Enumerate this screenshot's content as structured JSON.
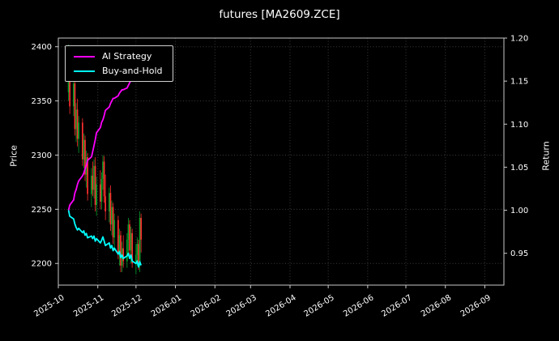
{
  "title": "futures [MA2609.ZCE]",
  "colors": {
    "background": "#000000",
    "text": "#ffffff",
    "grid": "#3b3b3b",
    "axis": "#c9c9c9",
    "up_candle": "#00a028",
    "down_candle": "#ff2e2e"
  },
  "chart_data": {
    "type": "candlestick+line",
    "title": "futures [MA2609.ZCE]",
    "x_axis": {
      "tick_labels": [
        "2025-10",
        "2025-11",
        "2025-12",
        "2026-01",
        "2026-02",
        "2026-03",
        "2026-04",
        "2026-05",
        "2026-06",
        "2026-07",
        "2026-08",
        "2026-09"
      ],
      "start_date": "2025-10-01",
      "end_date": "2026-09-16"
    },
    "left_axis": {
      "label": "Price",
      "ticks": [
        2200,
        2250,
        2300,
        2350,
        2400
      ],
      "range": [
        2180,
        2408
      ]
    },
    "right_axis": {
      "label": "Return",
      "ticks": [
        0.95,
        1.0,
        1.05,
        1.1,
        1.15,
        1.2
      ],
      "range": [
        0.913,
        1.2
      ]
    },
    "legend": [
      {
        "label": "AI Strategy",
        "color": "#ff00ff"
      },
      {
        "label": "Buy-and-Hold",
        "color": "#00ffff"
      }
    ],
    "candles": {
      "dates": [
        "2025-10-09",
        "2025-10-10",
        "2025-10-13",
        "2025-10-14",
        "2025-10-15",
        "2025-10-16",
        "2025-10-17",
        "2025-10-20",
        "2025-10-21",
        "2025-10-22",
        "2025-10-23",
        "2025-10-24",
        "2025-10-27",
        "2025-10-28",
        "2025-10-29",
        "2025-10-30",
        "2025-10-31",
        "2025-11-03",
        "2025-11-04",
        "2025-11-05",
        "2025-11-06",
        "2025-11-07",
        "2025-11-10",
        "2025-11-11",
        "2025-11-12",
        "2025-11-13",
        "2025-11-14",
        "2025-11-17",
        "2025-11-18",
        "2025-11-19",
        "2025-11-20",
        "2025-11-21",
        "2025-11-24",
        "2025-11-25",
        "2025-11-26",
        "2025-11-27",
        "2025-11-28",
        "2025-12-01",
        "2025-12-02",
        "2025-12-03",
        "2025-12-04",
        "2025-12-05"
      ],
      "open": [
        2358,
        2396,
        2345,
        2366,
        2324,
        2342,
        2315,
        2330,
        2296,
        2314,
        2282,
        2298,
        2264,
        2281,
        2268,
        2290,
        2254,
        2273,
        2257,
        2278,
        2294,
        2262,
        2248,
        2265,
        2236,
        2252,
        2224,
        2240,
        2210,
        2226,
        2198,
        2214,
        2202,
        2222,
        2236,
        2212,
        2228,
        2200,
        2208,
        2218,
        2198,
        2242
      ],
      "high": [
        2402,
        2399,
        2372,
        2370,
        2348,
        2352,
        2336,
        2334,
        2320,
        2318,
        2304,
        2302,
        2288,
        2294,
        2296,
        2298,
        2280,
        2286,
        2284,
        2300,
        2299,
        2282,
        2270,
        2272,
        2258,
        2256,
        2246,
        2244,
        2232,
        2230,
        2220,
        2226,
        2228,
        2242,
        2240,
        2234,
        2232,
        2218,
        2224,
        2222,
        2248,
        2246
      ],
      "low": [
        2350,
        2338,
        2336,
        2318,
        2312,
        2308,
        2302,
        2290,
        2288,
        2276,
        2270,
        2258,
        2252,
        2262,
        2260,
        2248,
        2244,
        2250,
        2250,
        2268,
        2256,
        2240,
        2238,
        2230,
        2226,
        2218,
        2212,
        2204,
        2198,
        2192,
        2192,
        2196,
        2196,
        2210,
        2206,
        2200,
        2196,
        2190,
        2198,
        2194,
        2192,
        2210
      ],
      "close": [
        2396,
        2345,
        2366,
        2324,
        2342,
        2315,
        2330,
        2296,
        2314,
        2282,
        2298,
        2264,
        2281,
        2268,
        2290,
        2254,
        2273,
        2257,
        2278,
        2294,
        2262,
        2248,
        2265,
        2236,
        2252,
        2224,
        2240,
        2210,
        2226,
        2198,
        2214,
        2202,
        2222,
        2236,
        2212,
        2228,
        2200,
        2208,
        2218,
        2198,
        2242,
        2222
      ]
    },
    "series": [
      {
        "name": "AI Strategy",
        "axis": "right",
        "color": "#ff00ff",
        "values": [
          1.0,
          1.006,
          1.012,
          1.02,
          1.024,
          1.03,
          1.034,
          1.04,
          1.043,
          1.048,
          1.052,
          1.058,
          1.062,
          1.068,
          1.075,
          1.082,
          1.09,
          1.096,
          1.102,
          1.105,
          1.11,
          1.116,
          1.12,
          1.124,
          1.127,
          1.13,
          1.13,
          1.133,
          1.136,
          1.138,
          1.14,
          1.14,
          1.142,
          1.145,
          1.148,
          1.151,
          1.154,
          1.158,
          1.162,
          1.166,
          1.17,
          1.173
        ]
      },
      {
        "name": "Buy-and-Hold",
        "axis": "right",
        "color": "#00ffff",
        "values": [
          1.0,
          0.993,
          0.99,
          0.984,
          0.98,
          0.977,
          0.979,
          0.974,
          0.976,
          0.971,
          0.973,
          0.968,
          0.97,
          0.967,
          0.97,
          0.964,
          0.967,
          0.962,
          0.965,
          0.969,
          0.964,
          0.959,
          0.962,
          0.956,
          0.959,
          0.953,
          0.956,
          0.949,
          0.952,
          0.945,
          0.948,
          0.944,
          0.947,
          0.95,
          0.944,
          0.948,
          0.941,
          0.938,
          0.941,
          0.934,
          0.94,
          0.936
        ]
      }
    ]
  }
}
